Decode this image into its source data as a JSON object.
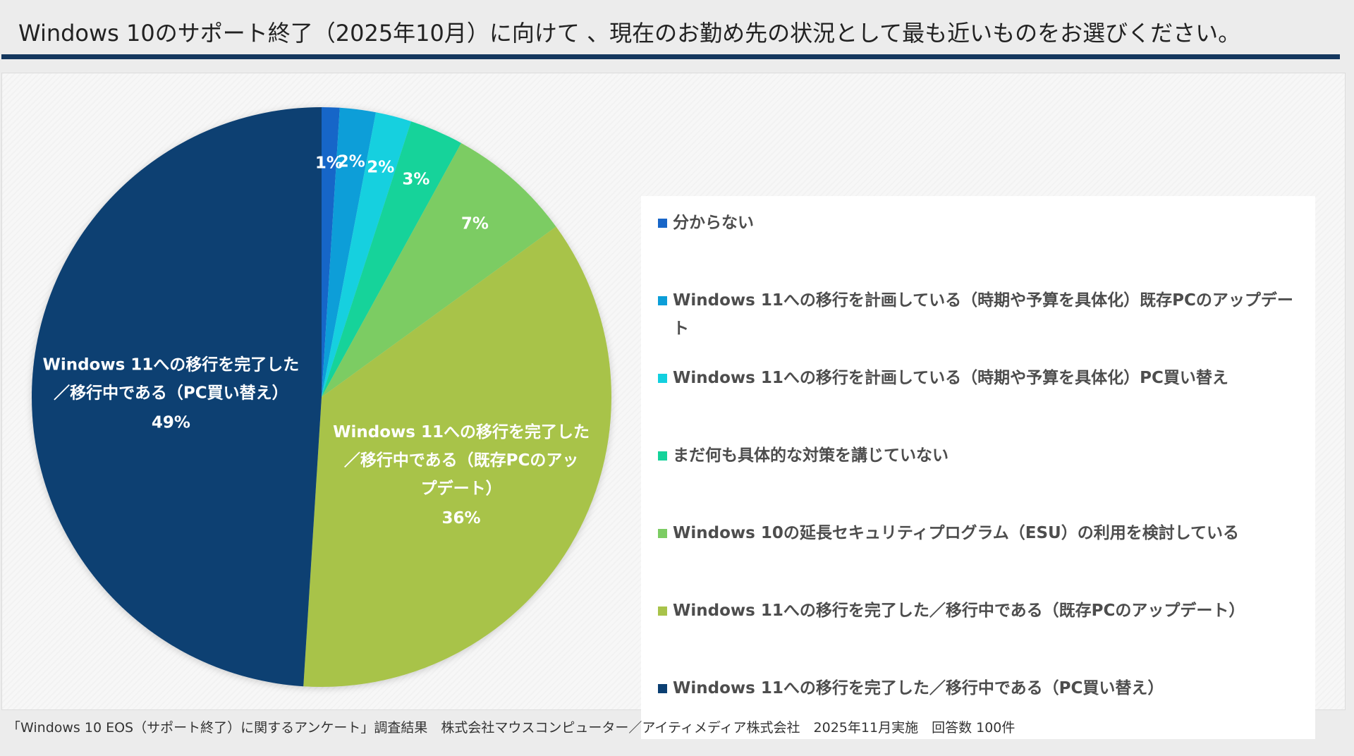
{
  "title": "Windows 10のサポート終了（2025年10月）に向けて 、現在のお勤め先の状況として最も近いものをお選びください。",
  "footer": "「Windows 10 EOS（サポート終了）に関するアンケート」調査結果　株式会社マウスコンピューター／アイティメディア株式会社　2025年11月実施　回答数 100件",
  "chart_data": {
    "type": "pie",
    "slices": [
      {
        "name": "分からない",
        "value": 1,
        "label": "1%",
        "color": "#1866c8"
      },
      {
        "name": "Windows 11への移行を計画している（時期や予算を具体化）既存PCのアップデート",
        "value": 2,
        "label": "2%",
        "color": "#0c9ed8"
      },
      {
        "name": "Windows 11への移行を計画している（時期や予算を具体化）PC買い替え",
        "value": 2,
        "label": "2%",
        "color": "#12d0df"
      },
      {
        "name": "まだ何も具体的な対策を講じていない",
        "value": 3,
        "label": "3%",
        "color": "#14d39a"
      },
      {
        "name": "Windows 10の延長セキュリティプログラム（ESU）の利用を検討している",
        "value": 7,
        "label": "7%",
        "color": "#7ccc63"
      },
      {
        "name": "Windows 11への移行を完了した／移行中である（既存PCのアップデート）",
        "value": 36,
        "label": "36%",
        "color": "#a8c34a",
        "slice_text": [
          "Windows 11への移行を完了した",
          "／移行中である（既存PCのアッ",
          "プデート）"
        ]
      },
      {
        "name": "Windows 11への移行を完了した／移行中である（PC買い替え）",
        "value": 49,
        "label": "49%",
        "color": "#0b3f72",
        "slice_text": [
          "Windows 11への移行を完了した",
          "／移行中である（PC買い替え）"
        ]
      }
    ],
    "legend": [
      {
        "text": "分からない",
        "color": "#1866c8"
      },
      {
        "text": "Windows 11への移行を計画している（時期や予算を具体化）既存PCのアップデー",
        "text2": "ト",
        "color": "#0c9ed8"
      },
      {
        "text": "Windows 11への移行を計画している（時期や予算を具体化）PC買い替え",
        "color": "#12d0df"
      },
      {
        "text": "まだ何も具体的な対策を講じていない",
        "color": "#14d39a"
      },
      {
        "text": "Windows 10の延長セキュリティプログラム（ESU）の利用を検討している",
        "color": "#7ccc63"
      },
      {
        "text": "Windows 11への移行を完了した／移行中である（既存PCのアップデート）",
        "color": "#a8c34a"
      },
      {
        "text": "Windows 11への移行を完了した／移行中である（PC買い替え）",
        "color": "#0b3f72"
      }
    ],
    "legend_position": "right"
  }
}
